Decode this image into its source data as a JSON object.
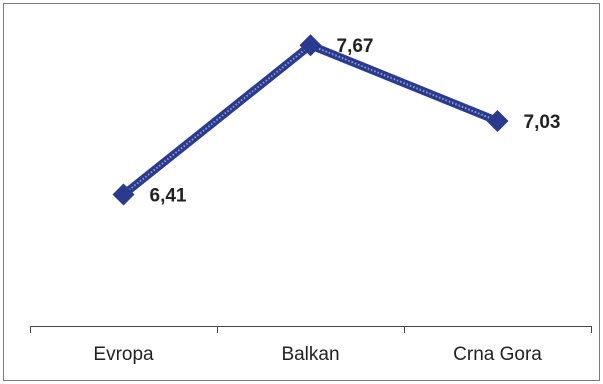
{
  "chart_data": {
    "type": "line",
    "categories": [
      "Evropa",
      "Balkan",
      "Crna Gora"
    ],
    "series": [
      {
        "values": [
          6.41,
          7.67,
          7.03
        ],
        "labels": [
          "6,41",
          "7,67",
          "7,03"
        ],
        "color": "#2a3a8c",
        "marker": "diamond"
      }
    ],
    "ylim": [
      5.3,
      7.9
    ],
    "grid": false,
    "legend": "none",
    "title": "",
    "xlabel": "",
    "ylabel": ""
  }
}
